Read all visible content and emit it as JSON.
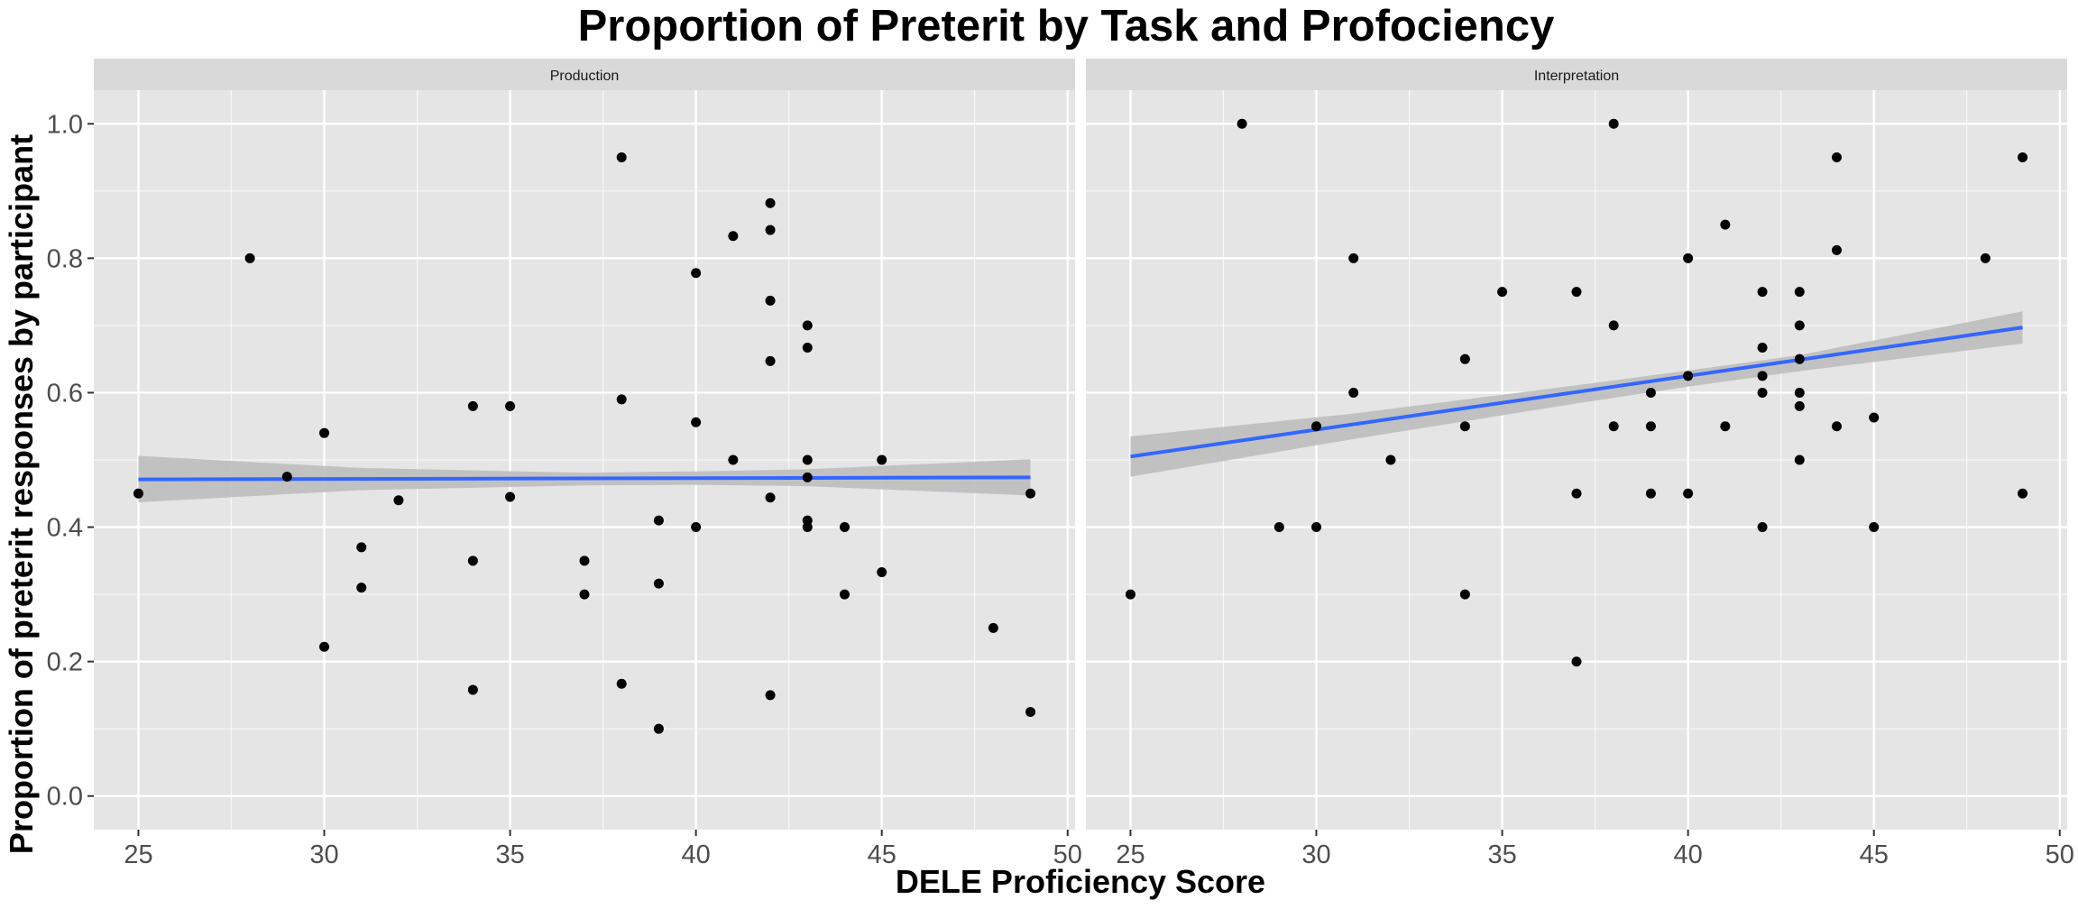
{
  "chart_data": {
    "type": "scatter",
    "title": "Proportion of Preterit by Task and Profociency",
    "xlabel": "DELE Proficiency Score",
    "ylabel": "Proportion of preterit responses by participant",
    "xlim": [
      23.8,
      50.2
    ],
    "ylim": [
      -0.05,
      1.05
    ],
    "x_ticks": [
      25,
      30,
      35,
      40,
      45,
      50
    ],
    "y_ticks": [
      0.0,
      0.2,
      0.4,
      0.6,
      0.8,
      1.0
    ],
    "y_tick_labels": [
      "0.0",
      "0.2",
      "0.4",
      "0.6",
      "0.8",
      "1.0"
    ],
    "grid": true,
    "colors": {
      "panel_background": "#e5e5e5",
      "strip_background": "#d9d9d9",
      "grid": "#ffffff",
      "points": "#000000",
      "trend_line": "#3366ff",
      "confidence_band": "#bdbdbd"
    },
    "panels": [
      {
        "name": "Production",
        "points": [
          [
            25,
            0.45
          ],
          [
            28,
            0.8
          ],
          [
            29,
            0.475
          ],
          [
            30,
            0.54
          ],
          [
            30,
            0.222
          ],
          [
            31,
            0.37
          ],
          [
            31,
            0.31
          ],
          [
            32,
            0.44
          ],
          [
            34,
            0.58
          ],
          [
            34,
            0.35
          ],
          [
            34,
            0.158
          ],
          [
            35,
            0.58
          ],
          [
            35,
            0.445
          ],
          [
            37,
            0.35
          ],
          [
            37,
            0.3
          ],
          [
            38,
            0.95
          ],
          [
            38,
            0.59
          ],
          [
            38,
            0.167
          ],
          [
            39,
            0.41
          ],
          [
            39,
            0.316
          ],
          [
            39,
            0.1
          ],
          [
            40,
            0.778
          ],
          [
            40,
            0.556
          ],
          [
            40,
            0.4
          ],
          [
            41,
            0.833
          ],
          [
            41,
            0.5
          ],
          [
            42,
            0.882
          ],
          [
            42,
            0.842
          ],
          [
            42,
            0.737
          ],
          [
            42,
            0.647
          ],
          [
            42,
            0.444
          ],
          [
            42,
            0.15
          ],
          [
            43,
            0.7
          ],
          [
            43,
            0.667
          ],
          [
            43,
            0.5
          ],
          [
            43,
            0.474
          ],
          [
            43,
            0.41
          ],
          [
            43,
            0.4
          ],
          [
            44,
            0.4
          ],
          [
            44,
            0.3
          ],
          [
            45,
            0.5
          ],
          [
            45,
            0.333
          ],
          [
            48,
            0.25
          ],
          [
            49,
            0.45
          ],
          [
            49,
            0.125
          ]
        ],
        "trend": {
          "x": [
            25,
            49
          ],
          "y": [
            0.471,
            0.474
          ]
        },
        "band": {
          "x": [
            25,
            31,
            37,
            40,
            43,
            49
          ],
          "lower": [
            0.437,
            0.455,
            0.462,
            0.463,
            0.461,
            0.447
          ],
          "upper": [
            0.506,
            0.488,
            0.481,
            0.483,
            0.486,
            0.501
          ]
        }
      },
      {
        "name": "Interpretation",
        "points": [
          [
            25,
            0.3
          ],
          [
            28,
            1.0
          ],
          [
            29,
            0.4
          ],
          [
            30,
            0.55
          ],
          [
            30,
            0.4
          ],
          [
            31,
            0.8
          ],
          [
            31,
            0.6
          ],
          [
            32,
            0.5
          ],
          [
            34,
            0.65
          ],
          [
            34,
            0.55
          ],
          [
            34,
            0.3
          ],
          [
            35,
            0.75
          ],
          [
            37,
            0.75
          ],
          [
            37,
            0.45
          ],
          [
            37,
            0.2
          ],
          [
            38,
            1.0
          ],
          [
            38,
            0.7
          ],
          [
            38,
            0.55
          ],
          [
            39,
            0.6
          ],
          [
            39,
            0.55
          ],
          [
            39,
            0.45
          ],
          [
            40,
            0.8
          ],
          [
            40,
            0.625
          ],
          [
            40,
            0.45
          ],
          [
            41,
            0.85
          ],
          [
            41,
            0.55
          ],
          [
            42,
            0.75
          ],
          [
            42,
            0.667
          ],
          [
            42,
            0.625
          ],
          [
            42,
            0.6
          ],
          [
            42,
            0.4
          ],
          [
            43,
            0.75
          ],
          [
            43,
            0.7
          ],
          [
            43,
            0.65
          ],
          [
            43,
            0.6
          ],
          [
            43,
            0.58
          ],
          [
            43,
            0.5
          ],
          [
            44,
            0.95
          ],
          [
            44,
            0.812
          ],
          [
            44,
            0.55
          ],
          [
            45,
            0.563
          ],
          [
            45,
            0.4
          ],
          [
            48,
            0.8
          ],
          [
            49,
            0.95
          ],
          [
            49,
            0.45
          ]
        ],
        "trend": {
          "x": [
            25,
            49
          ],
          "y": [
            0.505,
            0.697
          ]
        },
        "band": {
          "x": [
            25,
            31,
            37,
            40,
            43,
            49
          ],
          "lower": [
            0.475,
            0.531,
            0.584,
            0.609,
            0.632,
            0.673
          ],
          "upper": [
            0.535,
            0.569,
            0.611,
            0.633,
            0.656,
            0.721
          ]
        }
      }
    ]
  }
}
